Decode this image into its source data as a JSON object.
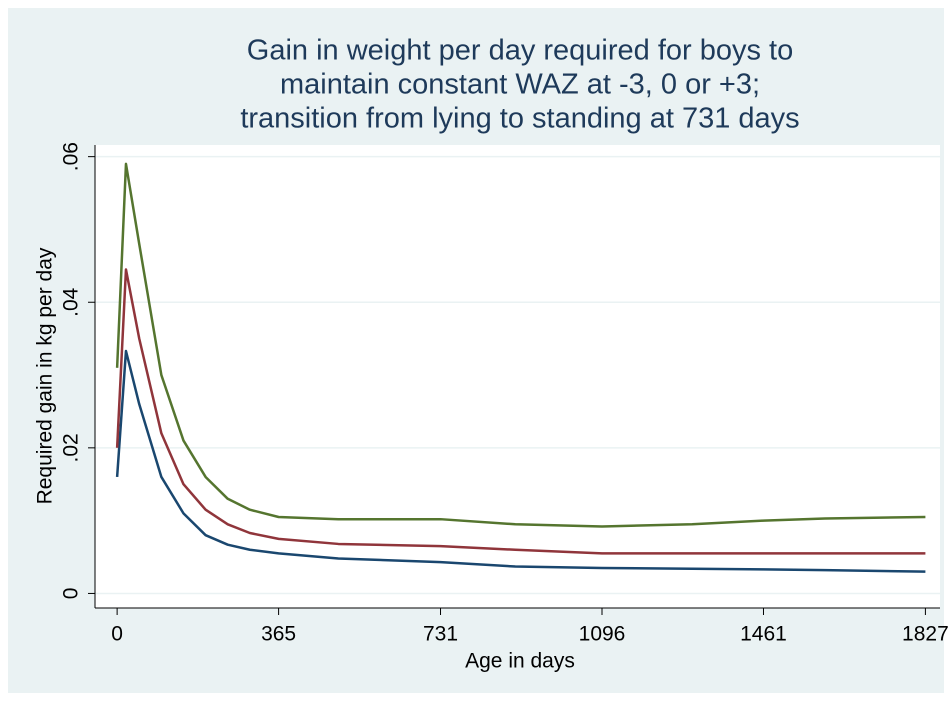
{
  "chart_data": {
    "type": "line",
    "title": [
      "Gain in weight per day required for boys to",
      "maintain constant WAZ at -3, 0 or +3;",
      "transition from lying to standing at 731 days"
    ],
    "x_label": "Age in days",
    "y_label": "Required gain in kg per day",
    "x": [
      0,
      20,
      50,
      100,
      150,
      200,
      250,
      300,
      365,
      500,
      731,
      900,
      1096,
      1300,
      1461,
      1600,
      1827
    ],
    "series": [
      {
        "color": "#1a476f",
        "values": [
          0.016,
          0.0333,
          0.026,
          0.016,
          0.011,
          0.008,
          0.0067,
          0.006,
          0.0055,
          0.0048,
          0.0043,
          0.0037,
          0.0035,
          0.0034,
          0.0033,
          0.0032,
          0.003
        ]
      },
      {
        "color": "#90353b",
        "values": [
          0.02,
          0.0445,
          0.035,
          0.022,
          0.015,
          0.0115,
          0.0095,
          0.0083,
          0.0075,
          0.0068,
          0.0065,
          0.006,
          0.0055,
          0.0055,
          0.0055,
          0.0055,
          0.0055
        ]
      },
      {
        "color": "#55752f",
        "values": [
          0.031,
          0.059,
          0.048,
          0.03,
          0.021,
          0.016,
          0.013,
          0.0115,
          0.0105,
          0.0102,
          0.0102,
          0.0095,
          0.0092,
          0.0095,
          0.01,
          0.0103,
          0.0105
        ]
      }
    ],
    "xlim": [
      -50,
      1860
    ],
    "ylim": [
      -0.002,
      0.0616
    ],
    "xticks": [
      0,
      365,
      731,
      1096,
      1461,
      1827
    ],
    "yticks": [
      0,
      {
        "value": 0.02,
        "label": ".02"
      },
      {
        "value": 0.04,
        "label": ".04"
      },
      {
        "value": 0.06,
        "label": ".06"
      }
    ],
    "grid": true
  }
}
